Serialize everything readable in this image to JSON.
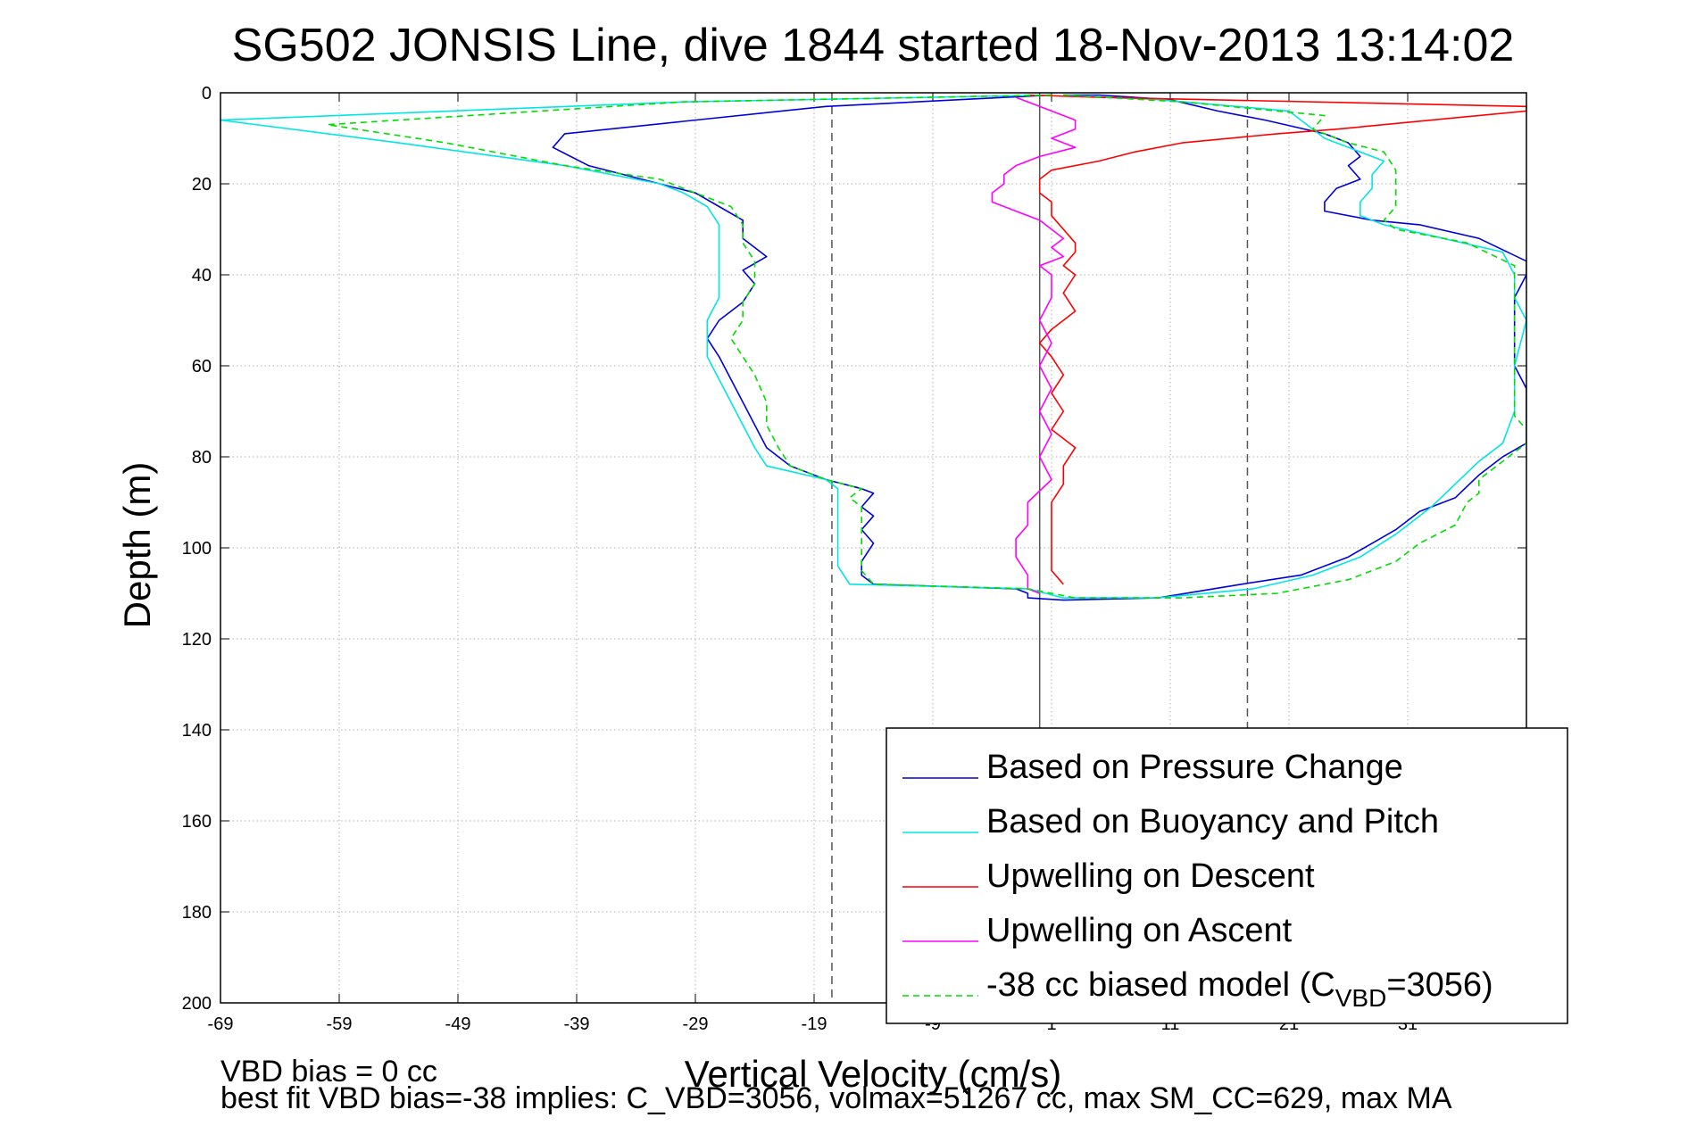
{
  "chart_data": {
    "type": "line",
    "title": "SG502 JONSIS Line, dive 1844 started 18-Nov-2013 13:14:02",
    "xlabel": "Vertical Velocity (cm/s)",
    "ylabel": "Depth (m)",
    "xlim": [
      -69,
      41
    ],
    "ylim": [
      0,
      200
    ],
    "y_reversed": true,
    "grid": true,
    "legend_placement": "bottom-right",
    "xticks": [
      "-69",
      "-59",
      "-49",
      "-39",
      "-29",
      "-19",
      "-9",
      "1",
      "11",
      "21",
      "31"
    ],
    "yticks": [
      "0",
      "20",
      "40",
      "60",
      "80",
      "100",
      "120",
      "140",
      "160",
      "180",
      "200"
    ],
    "reference_lines": [
      {
        "x": -17.5,
        "style": "dashed",
        "color": "#555555"
      },
      {
        "x": 0,
        "style": "solid",
        "color": "#555555"
      },
      {
        "x": 17.5,
        "style": "dashed",
        "color": "#555555"
      }
    ],
    "series": [
      {
        "name": "Based on Pressure Change",
        "color": "#0000dd",
        "dash": "solid",
        "points": [
          [
            1,
            0.5
          ],
          [
            -18,
            3
          ],
          [
            -40,
            9
          ],
          [
            -41,
            12
          ],
          [
            -38,
            16
          ],
          [
            -32,
            20
          ],
          [
            -29,
            22
          ],
          [
            -27,
            25
          ],
          [
            -25,
            28
          ],
          [
            -25,
            32
          ],
          [
            -23,
            36
          ],
          [
            -25,
            39
          ],
          [
            -24,
            42
          ],
          [
            -25,
            46
          ],
          [
            -27,
            50
          ],
          [
            -28,
            54
          ],
          [
            -27,
            58
          ],
          [
            -26,
            63
          ],
          [
            -25,
            68
          ],
          [
            -24,
            73
          ],
          [
            -23,
            78
          ],
          [
            -21,
            82
          ],
          [
            -18,
            85
          ],
          [
            -15,
            87
          ],
          [
            -14,
            88
          ],
          [
            -15,
            91
          ],
          [
            -14,
            93
          ],
          [
            -15,
            96
          ],
          [
            -14,
            99
          ],
          [
            -15,
            103
          ],
          [
            -15,
            106
          ],
          [
            -14,
            108
          ],
          [
            -2,
            109
          ],
          [
            -1,
            110
          ],
          [
            -1,
            111
          ],
          [
            2,
            111.5
          ],
          [
            10,
            111
          ],
          [
            17,
            108
          ],
          [
            22,
            106
          ],
          [
            26,
            102
          ],
          [
            28,
            99
          ],
          [
            30,
            96
          ],
          [
            32,
            92
          ],
          [
            35,
            89
          ],
          [
            37,
            84
          ],
          [
            39,
            80
          ],
          [
            41,
            77
          ],
          [
            41,
            74
          ],
          [
            41,
            69
          ],
          [
            41,
            67
          ],
          [
            41,
            65
          ],
          [
            40,
            60
          ],
          [
            40,
            52
          ],
          [
            40,
            45
          ],
          [
            41,
            40
          ],
          [
            41,
            37
          ],
          [
            37,
            32
          ],
          [
            32,
            29
          ],
          [
            28,
            28
          ],
          [
            24,
            26
          ],
          [
            24,
            24
          ],
          [
            25,
            21
          ],
          [
            27,
            19
          ],
          [
            26,
            16
          ],
          [
            27,
            14
          ],
          [
            26,
            11
          ],
          [
            24,
            9
          ],
          [
            19,
            6
          ],
          [
            15,
            4
          ],
          [
            11,
            1.5
          ],
          [
            5,
            0.5
          ],
          [
            2,
            0.5
          ]
        ]
      },
      {
        "name": "Based on Buoyancy and Pitch",
        "color": "#00e5e5",
        "dash": "solid",
        "points": [
          [
            1,
            0.5
          ],
          [
            -30,
            2
          ],
          [
            -69,
            6
          ],
          [
            -54,
            11
          ],
          [
            -40,
            16
          ],
          [
            -32,
            20
          ],
          [
            -30,
            22
          ],
          [
            -28,
            25
          ],
          [
            -27,
            29
          ],
          [
            -27,
            33
          ],
          [
            -27,
            40
          ],
          [
            -27,
            45
          ],
          [
            -28,
            50
          ],
          [
            -28,
            54
          ],
          [
            -28,
            58
          ],
          [
            -27,
            63
          ],
          [
            -26,
            68
          ],
          [
            -25,
            73
          ],
          [
            -24,
            78
          ],
          [
            -23,
            82
          ],
          [
            -18,
            85
          ],
          [
            -17,
            87
          ],
          [
            -17,
            91
          ],
          [
            -17,
            95
          ],
          [
            -17,
            100
          ],
          [
            -17,
            104
          ],
          [
            -16,
            108
          ],
          [
            -1,
            109
          ],
          [
            2,
            111
          ],
          [
            10,
            111
          ],
          [
            18,
            109
          ],
          [
            23,
            106
          ],
          [
            27,
            102
          ],
          [
            30,
            97
          ],
          [
            33,
            91
          ],
          [
            35,
            86
          ],
          [
            37,
            81
          ],
          [
            39,
            77
          ],
          [
            40,
            70
          ],
          [
            40,
            60
          ],
          [
            41,
            50
          ],
          [
            40,
            45
          ],
          [
            40,
            40
          ],
          [
            39,
            35
          ],
          [
            34,
            32
          ],
          [
            29,
            29
          ],
          [
            27,
            27
          ],
          [
            27,
            24
          ],
          [
            28,
            21
          ],
          [
            28,
            18
          ],
          [
            29,
            15
          ],
          [
            27,
            13
          ],
          [
            24,
            10
          ],
          [
            23,
            8
          ],
          [
            22,
            6
          ],
          [
            21,
            4
          ],
          [
            10,
            1.5
          ],
          [
            2,
            0.5
          ]
        ]
      },
      {
        "name": "Upwelling on Descent",
        "color": "#ff0000",
        "dash": "solid",
        "points": [
          [
            -1,
            0.5
          ],
          [
            5,
            1
          ],
          [
            41,
            3
          ],
          [
            41,
            4
          ],
          [
            25,
            8
          ],
          [
            20,
            9
          ],
          [
            12,
            11
          ],
          [
            8,
            13
          ],
          [
            5,
            15
          ],
          [
            1,
            17
          ],
          [
            0,
            19
          ],
          [
            0,
            22
          ],
          [
            1,
            24
          ],
          [
            1,
            27
          ],
          [
            2,
            30
          ],
          [
            3,
            33
          ],
          [
            3,
            35
          ],
          [
            2,
            38
          ],
          [
            3,
            40
          ],
          [
            2,
            44
          ],
          [
            3,
            48
          ],
          [
            1,
            52
          ],
          [
            0,
            55
          ],
          [
            1,
            58
          ],
          [
            2,
            62
          ],
          [
            1,
            66
          ],
          [
            2,
            70
          ],
          [
            1,
            74
          ],
          [
            3,
            78
          ],
          [
            2,
            82
          ],
          [
            2,
            86
          ],
          [
            1,
            90
          ],
          [
            1,
            94
          ],
          [
            1,
            98
          ],
          [
            1,
            102
          ],
          [
            1,
            105
          ],
          [
            2,
            108
          ]
        ]
      },
      {
        "name": "Upwelling on Ascent",
        "color": "#ff00ff",
        "dash": "solid",
        "points": [
          [
            -2,
            1
          ],
          [
            0,
            3
          ],
          [
            3,
            6
          ],
          [
            3,
            8
          ],
          [
            1,
            10
          ],
          [
            3,
            12
          ],
          [
            0,
            14
          ],
          [
            -2,
            16
          ],
          [
            -3,
            18
          ],
          [
            -3,
            20
          ],
          [
            -4,
            22
          ],
          [
            -4,
            24
          ],
          [
            -2,
            26
          ],
          [
            0,
            28
          ],
          [
            1,
            30
          ],
          [
            2,
            32
          ],
          [
            1,
            34
          ],
          [
            2,
            36
          ],
          [
            0,
            38
          ],
          [
            1,
            40
          ],
          [
            1,
            45
          ],
          [
            0,
            50
          ],
          [
            1,
            55
          ],
          [
            0,
            60
          ],
          [
            1,
            65
          ],
          [
            0,
            70
          ],
          [
            1,
            75
          ],
          [
            0,
            80
          ],
          [
            1,
            85
          ],
          [
            -1,
            90
          ],
          [
            -1,
            95
          ],
          [
            -2,
            98
          ],
          [
            -2,
            102
          ],
          [
            -1,
            106
          ],
          [
            -1,
            109
          ],
          [
            0,
            110
          ]
        ]
      },
      {
        "name": "-38 cc biased model (C_VBD=3056)",
        "legend_prefix": "-38 cc biased model (C",
        "legend_sub": "VBD",
        "legend_suffix": "=3056)",
        "color": "#00dd00",
        "dash": "dashed",
        "points": [
          [
            1,
            0.5
          ],
          [
            -30,
            2
          ],
          [
            -60,
            7
          ],
          [
            -50,
            11
          ],
          [
            -40,
            16
          ],
          [
            -32,
            19
          ],
          [
            -29,
            22
          ],
          [
            -26,
            25
          ],
          [
            -25,
            29
          ],
          [
            -25,
            33
          ],
          [
            -24,
            37
          ],
          [
            -24,
            42
          ],
          [
            -25,
            46
          ],
          [
            -25,
            50
          ],
          [
            -26,
            54
          ],
          [
            -25,
            58
          ],
          [
            -24,
            62
          ],
          [
            -23,
            68
          ],
          [
            -23,
            73
          ],
          [
            -22,
            78
          ],
          [
            -21,
            82
          ],
          [
            -18,
            85
          ],
          [
            -15,
            87
          ],
          [
            -16,
            89
          ],
          [
            -15,
            91
          ],
          [
            -15,
            95
          ],
          [
            -15,
            100
          ],
          [
            -15,
            105
          ],
          [
            -14,
            108
          ],
          [
            -1,
            109
          ],
          [
            3,
            111
          ],
          [
            12,
            111
          ],
          [
            20,
            110
          ],
          [
            26,
            107
          ],
          [
            30,
            103
          ],
          [
            32,
            99
          ],
          [
            35,
            95
          ],
          [
            36,
            90
          ],
          [
            37,
            88
          ],
          [
            37,
            85
          ],
          [
            39,
            81
          ],
          [
            41,
            77
          ],
          [
            41,
            74
          ],
          [
            40,
            71
          ],
          [
            40,
            60
          ],
          [
            40,
            50
          ],
          [
            40,
            45
          ],
          [
            40,
            38
          ],
          [
            36,
            33
          ],
          [
            30,
            30
          ],
          [
            29,
            28
          ],
          [
            30,
            25
          ],
          [
            30,
            21
          ],
          [
            30,
            17
          ],
          [
            29,
            13
          ],
          [
            26,
            11
          ],
          [
            23,
            8
          ],
          [
            24,
            5
          ],
          [
            20,
            4
          ],
          [
            12,
            2
          ],
          [
            2,
            0.5
          ]
        ]
      }
    ]
  },
  "footer": {
    "line1": "VBD bias = 0 cc",
    "line2": "best fit VBD bias=-38 implies: C_VBD=3056, volmax=51267 cc, max SM_CC=629, max MA"
  }
}
